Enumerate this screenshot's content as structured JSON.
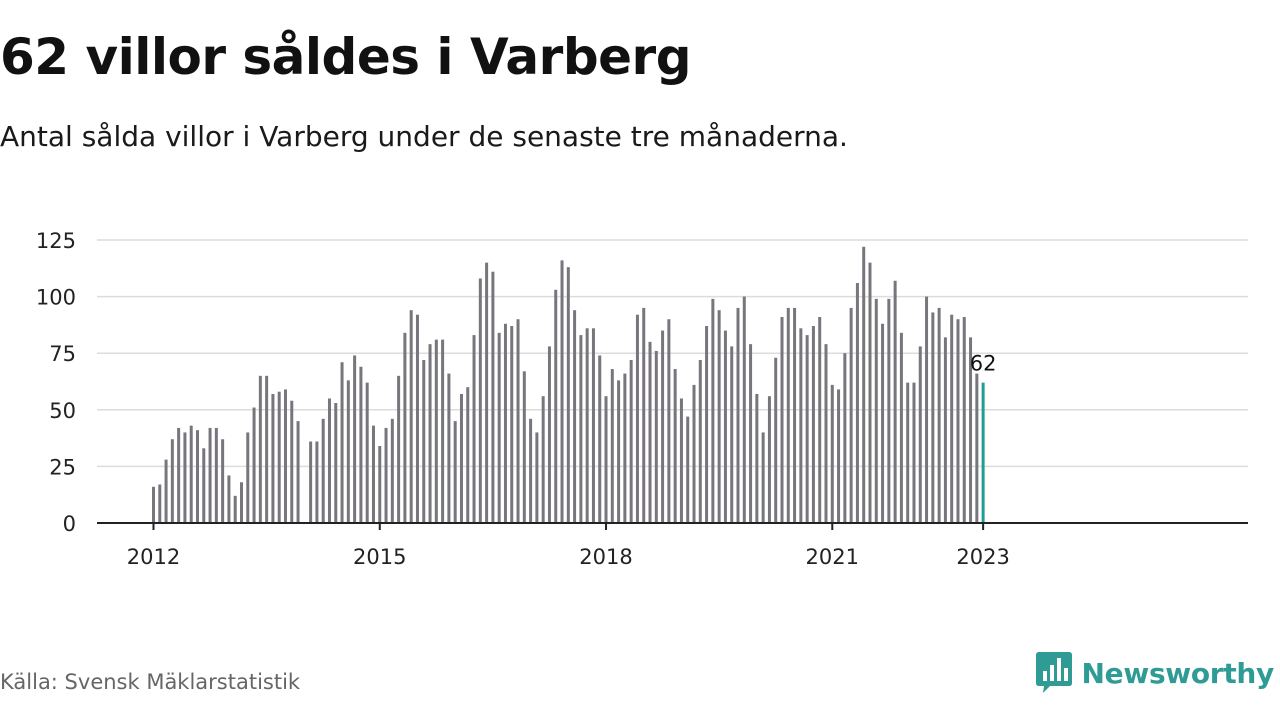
{
  "header": {
    "title": "62 villor såldes i Varberg",
    "subtitle": "Antal sålda villor i Varberg under de senaste tre månaderna."
  },
  "footer": {
    "source": "Källa: Svensk Mäklarstatistik",
    "brand_name": "Newsworthy",
    "brand_color": "#2e9c95",
    "brand_icon": "bar-chart-badge-icon"
  },
  "colors": {
    "bar": "#76767c",
    "highlight": "#1f9e98",
    "grid": "#dcdcdc",
    "axis": "#222222"
  },
  "chart_data": {
    "type": "bar",
    "x_start": "2012-01",
    "x_end": "2023-01",
    "ylim": [
      0,
      125
    ],
    "y_ticks": [
      0,
      25,
      50,
      75,
      100,
      125
    ],
    "x_ticks": [
      "2012",
      "2015",
      "2018",
      "2021",
      "2023"
    ],
    "grid": true,
    "highlight_label": "62",
    "values": [
      16,
      17,
      28,
      37,
      42,
      40,
      43,
      41,
      33,
      42,
      42,
      37,
      21,
      12,
      18,
      40,
      51,
      65,
      65,
      57,
      58,
      59,
      54,
      45,
      null,
      36,
      36,
      46,
      55,
      53,
      71,
      63,
      74,
      69,
      62,
      43,
      34,
      42,
      46,
      65,
      84,
      94,
      92,
      72,
      79,
      81,
      81,
      66,
      45,
      57,
      60,
      83,
      108,
      115,
      111,
      84,
      88,
      87,
      90,
      67,
      46,
      40,
      56,
      78,
      103,
      116,
      113,
      94,
      83,
      86,
      86,
      74,
      56,
      68,
      63,
      66,
      72,
      92,
      95,
      80,
      76,
      85,
      90,
      68,
      55,
      47,
      61,
      72,
      87,
      99,
      94,
      85,
      78,
      95,
      100,
      79,
      57,
      40,
      56,
      73,
      91,
      95,
      95,
      86,
      83,
      87,
      91,
      79,
      61,
      59,
      75,
      95,
      106,
      122,
      115,
      99,
      88,
      99,
      107,
      84,
      62,
      62,
      78,
      100,
      93,
      95,
      82,
      92,
      90,
      91,
      82,
      66,
      62
    ]
  }
}
